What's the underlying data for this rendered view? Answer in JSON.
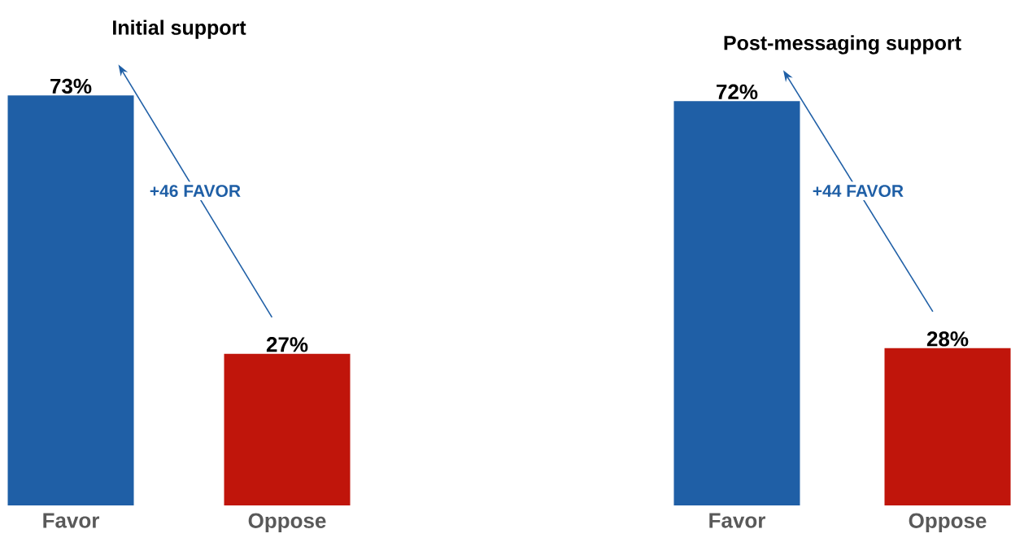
{
  "chart_data": [
    {
      "type": "bar",
      "title": "Initial support",
      "categories": [
        "Favor",
        "Oppose"
      ],
      "values": [
        73,
        27
      ],
      "value_labels": [
        "73%",
        "27%"
      ],
      "colors": [
        "#1f5fa6",
        "#c0150b"
      ],
      "annotations": [
        "+46 FAVOR"
      ]
    },
    {
      "type": "bar",
      "title": "Post-messaging support",
      "categories": [
        "Favor",
        "Oppose"
      ],
      "values": [
        72,
        28
      ],
      "value_labels": [
        "72%",
        "28%"
      ],
      "colors": [
        "#1f5fa6",
        "#c0150b"
      ],
      "annotations": [
        "+44 FAVOR"
      ]
    }
  ]
}
